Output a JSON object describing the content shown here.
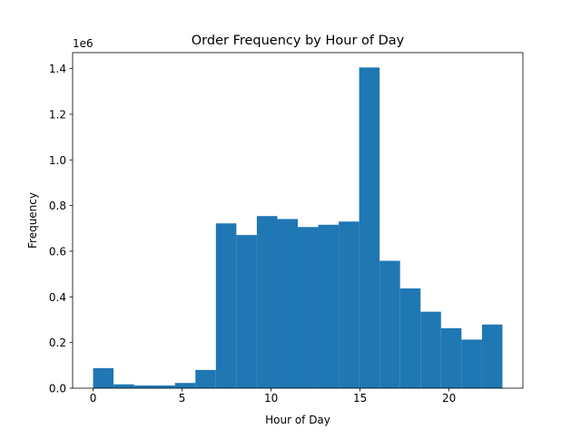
{
  "chart_data": {
    "type": "bar",
    "title": "Order Frequency by Hour of Day",
    "xlabel": "Hour of Day",
    "ylabel": "Frequency",
    "offset_label": "1e6",
    "xlim": [
      -1.15,
      24.15
    ],
    "ylim": [
      0,
      1.47
    ],
    "x_ticks": [
      0,
      5,
      10,
      15,
      20
    ],
    "x_tick_labels": [
      "0",
      "5",
      "10",
      "15",
      "20"
    ],
    "y_ticks": [
      0.0,
      0.2,
      0.4,
      0.6,
      0.8,
      1.0,
      1.2,
      1.4
    ],
    "y_tick_labels": [
      "0.0",
      "0.2",
      "0.4",
      "0.6",
      "0.8",
      "1.0",
      "1.2",
      "1.4"
    ],
    "bin_edges": [
      0,
      1.15,
      2.3,
      3.45,
      4.6,
      5.75,
      6.9,
      8.05,
      9.2,
      10.35,
      11.5,
      12.65,
      13.8,
      14.95,
      16.1,
      17.25,
      18.4,
      19.55,
      20.7,
      21.85,
      23.0
    ],
    "values": [
      0.088,
      0.017,
      0.012,
      0.012,
      0.023,
      0.08,
      0.722,
      0.671,
      0.754,
      0.741,
      0.706,
      0.716,
      0.73,
      1.405,
      0.558,
      0.437,
      0.335,
      0.263,
      0.213,
      0.279
    ],
    "bar_color": "#1f77b4",
    "grid": false
  }
}
